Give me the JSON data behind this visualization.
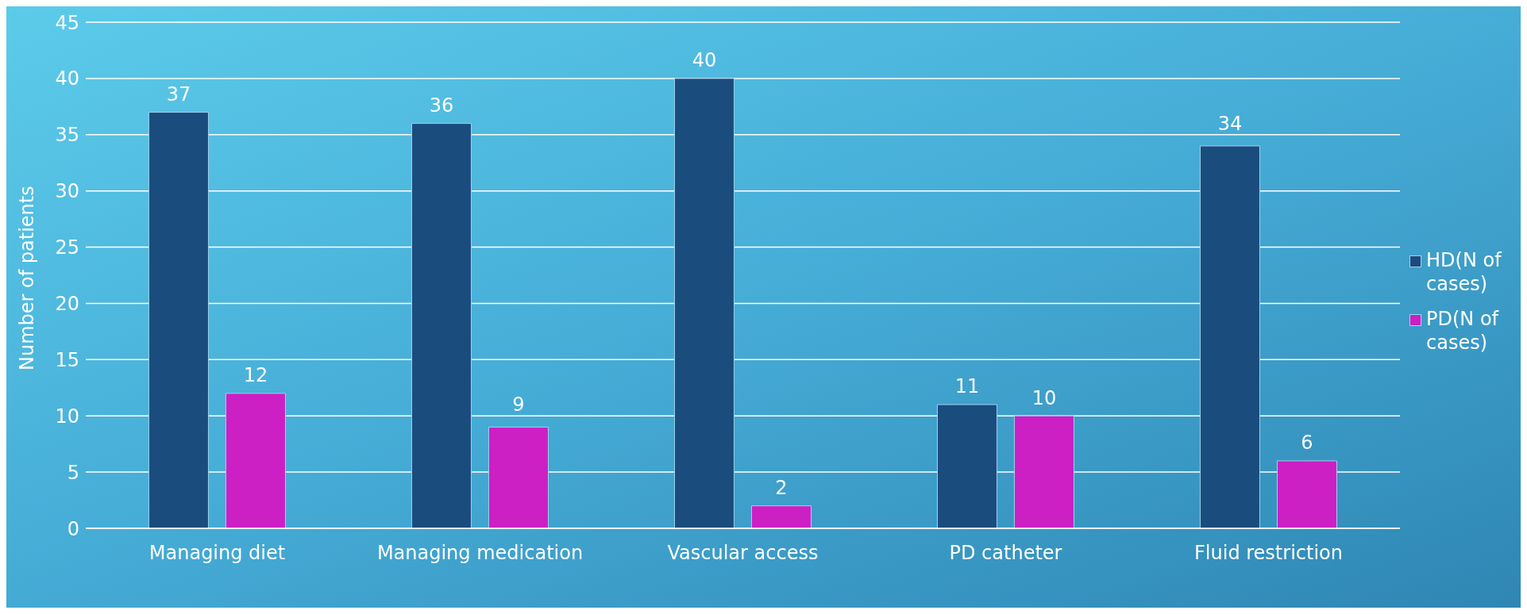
{
  "chart_data": {
    "type": "bar",
    "ylabel": "Number of patients",
    "categories": [
      "Managing diet",
      "Managing medication",
      "Vascular access",
      "PD catheter",
      "Fluid restriction"
    ],
    "series": [
      {
        "name": "HD(N of cases)",
        "color": "#1b4c7e",
        "values": [
          37,
          36,
          40,
          11,
          34
        ]
      },
      {
        "name": "PD(N of cases)",
        "color": "#cc1fc4",
        "values": [
          12,
          9,
          2,
          10,
          6
        ]
      }
    ],
    "ylim": [
      0,
      45
    ],
    "yticks": [
      0,
      5,
      10,
      15,
      20,
      25,
      30,
      35,
      40,
      45
    ],
    "grid": "y",
    "legend": "right",
    "data_labels": true
  }
}
